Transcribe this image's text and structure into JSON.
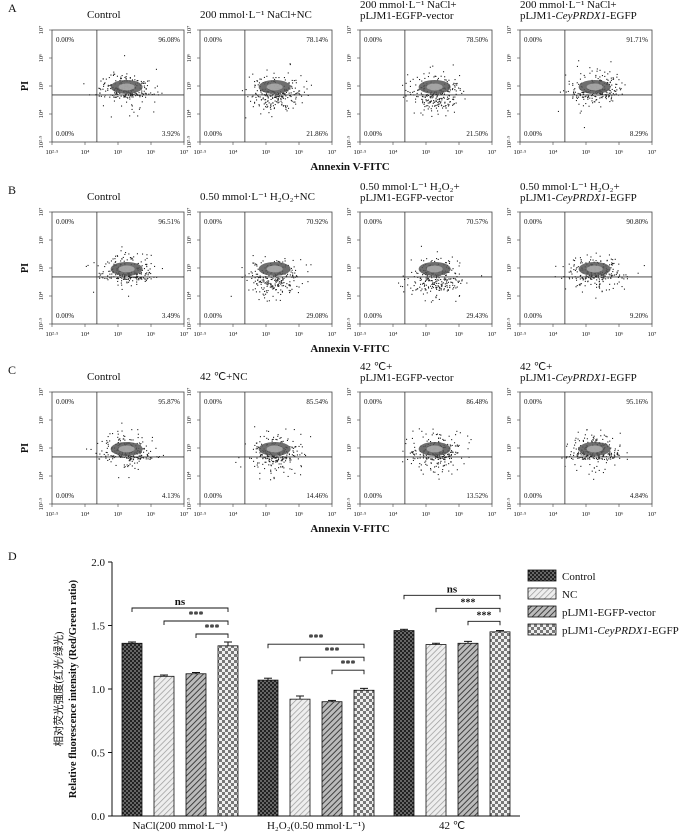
{
  "flow": {
    "x_axis_label": "Annexin  V-FITC",
    "y_axis_label": "PI",
    "x_ticks": [
      "10²·⁵",
      "10⁴",
      "10⁵",
      "10⁶",
      "10⁷"
    ],
    "y_ticks": [
      "10⁷",
      "10⁶",
      "10⁵",
      "10⁴",
      "10²·⁵"
    ],
    "panels": [
      {
        "letter": "A",
        "plots": [
          {
            "title": [
              "Control"
            ],
            "q": {
              "ul": "0.00%",
              "ur": "96.08%",
              "ll": "0.00%",
              "lr": "3.92%"
            }
          },
          {
            "title": [
              "200 mmol·L⁻¹ NaCl+NC"
            ],
            "q": {
              "ul": "0.00%",
              "ur": "78.14%",
              "ll": "0.00%",
              "lr": "21.86%"
            }
          },
          {
            "title": [
              "200 mmol·L⁻¹ NaCl+",
              "pLJM1-EGFP-vector"
            ],
            "q": {
              "ul": "0.00%",
              "ur": "78.50%",
              "ll": "0.00%",
              "lr": "21.50%"
            }
          },
          {
            "title": [
              "200 mmol·L⁻¹ NaCl+",
              "pLJM1-CeyPRDX1-EGFP"
            ],
            "q": {
              "ul": "0.00%",
              "ur": "91.71%",
              "ll": "0.00%",
              "lr": "8.29%"
            }
          }
        ]
      },
      {
        "letter": "B",
        "plots": [
          {
            "title": [
              "Control"
            ],
            "q": {
              "ul": "0.00%",
              "ur": "96.51%",
              "ll": "0.00%",
              "lr": "3.49%"
            }
          },
          {
            "title": [
              "0.50 mmol·L⁻¹ H₂O₂+NC"
            ],
            "q": {
              "ul": "0.00%",
              "ur": "70.92%",
              "ll": "0.00%",
              "lr": "29.08%"
            }
          },
          {
            "title": [
              "0.50 mmol·L⁻¹ H₂O₂+",
              "pLJM1-EGFP-vector"
            ],
            "q": {
              "ul": "0.00%",
              "ur": "70.57%",
              "ll": "0.00%",
              "lr": "29.43%"
            }
          },
          {
            "title": [
              "0.50 mmol·L⁻¹ H₂O₂+",
              "pLJM1-CeyPRDX1-EGFP"
            ],
            "q": {
              "ul": "0.00%",
              "ur": "90.80%",
              "ll": "0.00%",
              "lr": "9.20%"
            }
          }
        ]
      },
      {
        "letter": "C",
        "plots": [
          {
            "title": [
              "Control"
            ],
            "q": {
              "ul": "0.00%",
              "ur": "95.87%",
              "ll": "0.00%",
              "lr": "4.13%"
            }
          },
          {
            "title": [
              "42 ℃+NC"
            ],
            "q": {
              "ul": "0.00%",
              "ur": "85.54%",
              "ll": "0.00%",
              "lr": "14.46%"
            }
          },
          {
            "title": [
              "42 ℃+",
              "pLJM1-EGFP-vector"
            ],
            "q": {
              "ul": "0.00%",
              "ur": "86.48%",
              "ll": "0.00%",
              "lr": "13.52%"
            }
          },
          {
            "title": [
              "42 ℃+",
              "pLJM1-CeyPRDX1-EGFP"
            ],
            "q": {
              "ul": "0.00%",
              "ur": "95.16%",
              "ll": "0.00%",
              "lr": "4.84%"
            }
          }
        ]
      }
    ]
  },
  "panel_d_letter": "D",
  "chart_data": {
    "type": "bar",
    "categories": [
      "NaCl(200 mmol·L⁻¹)",
      "H₂O₂(0.50 mmol·L⁻¹)",
      "42 ℃"
    ],
    "series": [
      {
        "name": "Control",
        "values": [
          1.36,
          1.07,
          1.46
        ],
        "errors": [
          0.01,
          0.015,
          0.01
        ],
        "pattern": "dark-checker"
      },
      {
        "name": "NC",
        "values": [
          1.1,
          0.92,
          1.35
        ],
        "errors": [
          0.01,
          0.025,
          0.01
        ],
        "pattern": "light-diagonal"
      },
      {
        "name": "pLJM1-EGFP-vector",
        "values": [
          1.12,
          0.9,
          1.36
        ],
        "errors": [
          0.01,
          0.01,
          0.015
        ],
        "pattern": "dark-diagonal"
      },
      {
        "name": "pLJM1-CeyPRDX1-EGFP",
        "values": [
          1.34,
          0.99,
          1.45
        ],
        "errors": [
          0.03,
          0.015,
          0.01
        ],
        "pattern": "checker"
      }
    ],
    "ylabel_cn": "相对荧光强度(红光/绿光)",
    "ylabel_en": "Relative fluorescence intensity (Red/Green ratio)",
    "ylim": [
      0,
      2.0
    ],
    "yticks": [
      0,
      0.5,
      1.0,
      1.5,
      2.0
    ],
    "significance": [
      [
        {
          "from": 0,
          "to": 3,
          "label": "ns"
        },
        {
          "from": 1,
          "to": 3,
          "label": "***"
        },
        {
          "from": 2,
          "to": 3,
          "label": "***"
        }
      ],
      [
        {
          "from": 0,
          "to": 3,
          "label": "***"
        },
        {
          "from": 1,
          "to": 3,
          "label": "***"
        },
        {
          "from": 2,
          "to": 3,
          "label": "***"
        }
      ],
      [
        {
          "from": 0,
          "to": 3,
          "label": "ns"
        },
        {
          "from": 1,
          "to": 3,
          "label": "***"
        },
        {
          "from": 2,
          "to": 3,
          "label": "***"
        }
      ]
    ],
    "legend_position": "top-right"
  }
}
